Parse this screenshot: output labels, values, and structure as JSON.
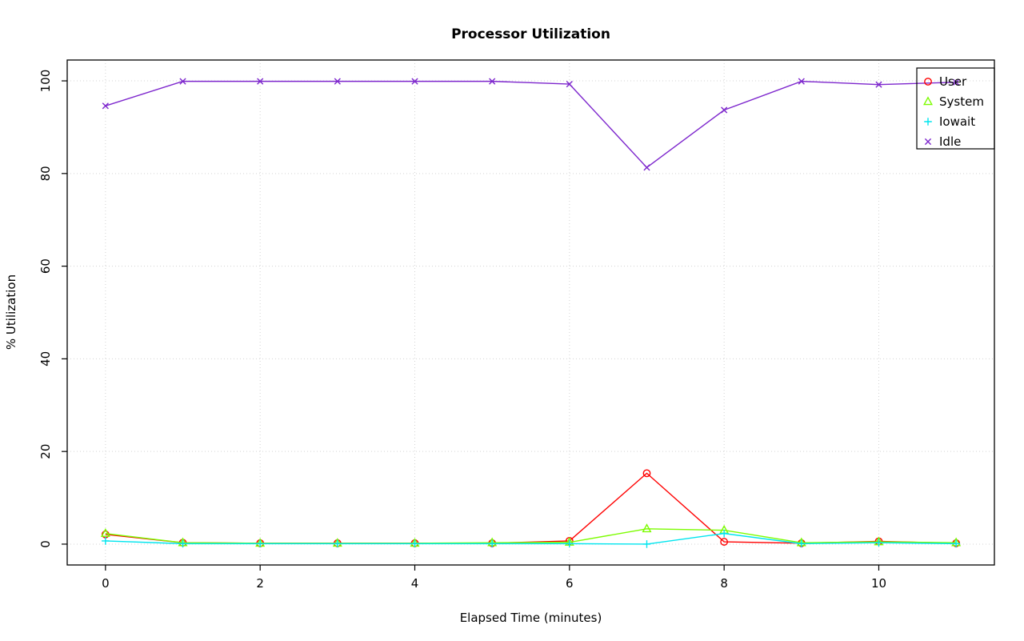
{
  "title": "Processor Utilization",
  "chart_data": {
    "type": "line",
    "title": "Processor Utilization",
    "xlabel": "Elapsed Time (minutes)",
    "ylabel": "% Utilization",
    "x": [
      0,
      1,
      2,
      3,
      4,
      5,
      6,
      7,
      8,
      9,
      10,
      11
    ],
    "xlim": [
      0,
      11
    ],
    "ylim": [
      0,
      100
    ],
    "xticks": [
      0,
      2,
      4,
      6,
      8,
      10
    ],
    "yticks": [
      0,
      20,
      40,
      60,
      80,
      100
    ],
    "grid": true,
    "grid_color": "#d3d3d3",
    "legend_position": "top-right",
    "series": [
      {
        "name": "User",
        "color": "#ff0000",
        "marker": "circle",
        "values": [
          2.1,
          0.3,
          0.2,
          0.2,
          0.2,
          0.2,
          0.7,
          15.3,
          0.5,
          0.2,
          0.6,
          0.2
        ]
      },
      {
        "name": "System",
        "color": "#7cfc00",
        "marker": "triangle",
        "values": [
          2.3,
          0.3,
          0.2,
          0.2,
          0.2,
          0.3,
          0.4,
          3.3,
          3.0,
          0.3,
          0.5,
          0.3
        ]
      },
      {
        "name": "Iowait",
        "color": "#00e5ee",
        "marker": "plus",
        "values": [
          0.7,
          0.1,
          0.1,
          0.1,
          0.1,
          0.1,
          0.1,
          0.0,
          2.3,
          0.1,
          0.3,
          0.1
        ]
      },
      {
        "name": "Idle",
        "color": "#7d26cd",
        "marker": "x",
        "values": [
          94.6,
          99.9,
          99.9,
          99.9,
          99.9,
          99.9,
          99.3,
          81.3,
          93.7,
          99.9,
          99.2,
          99.7
        ]
      }
    ]
  }
}
